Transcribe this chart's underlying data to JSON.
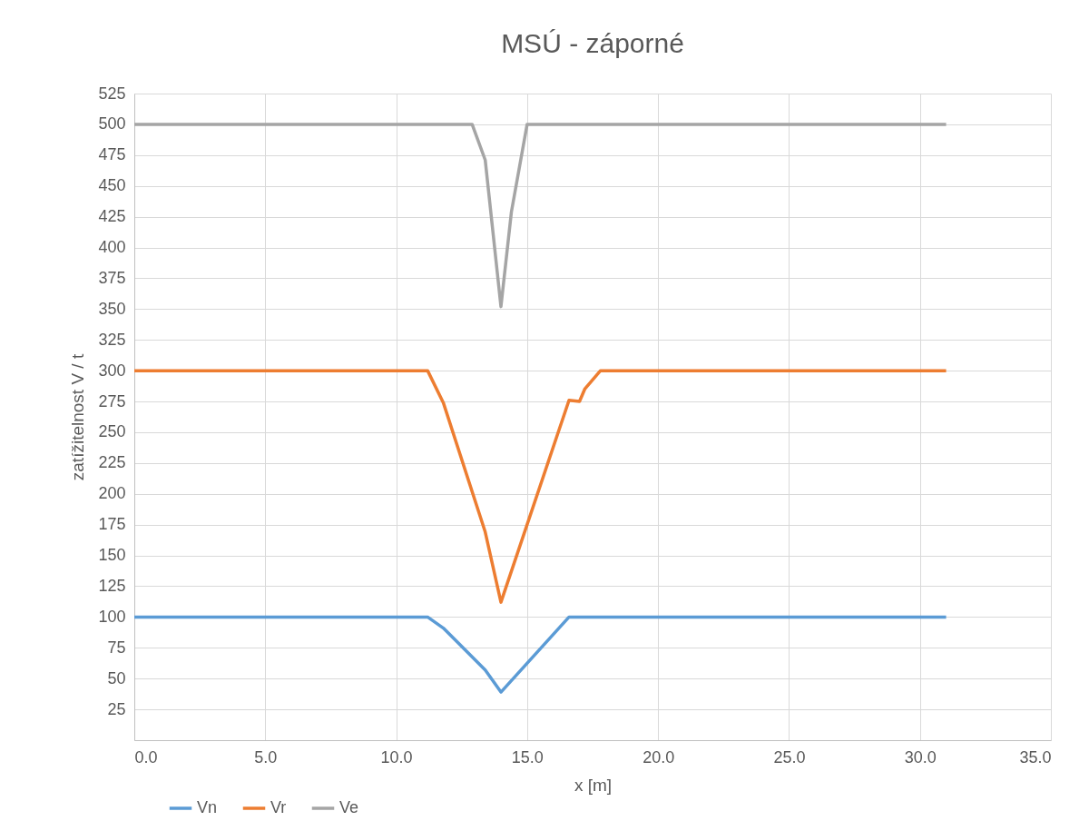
{
  "chart_data": {
    "type": "line",
    "title": "MSÚ - záporné",
    "xlabel": "x [m]",
    "ylabel": "zatížitelnost V / t",
    "series": [
      {
        "name": "Vn",
        "color": "#5b9bd5",
        "x": [
          0,
          11.2,
          11.8,
          13.4,
          14.0,
          16.6,
          31.0
        ],
        "values": [
          100,
          100,
          91,
          57,
          39,
          100,
          100
        ]
      },
      {
        "name": "Vr",
        "color": "#ed7d31",
        "x": [
          0,
          11.2,
          11.8,
          13.4,
          14.0,
          16.6,
          17.0,
          17.2,
          17.8,
          31.0
        ],
        "values": [
          300,
          300,
          274,
          169,
          112,
          276,
          275,
          285,
          300,
          300
        ]
      },
      {
        "name": "Ve",
        "color": "#a5a5a5",
        "x": [
          0,
          12.9,
          13.4,
          14.0,
          14.4,
          15.0,
          31.0
        ],
        "values": [
          500,
          500,
          471,
          352,
          429,
          500,
          500
        ]
      }
    ],
    "xlim": [
      0,
      35
    ],
    "xticks": [
      {
        "value": 0,
        "label": "0.0"
      },
      {
        "value": 5,
        "label": "5.0"
      },
      {
        "value": 10,
        "label": "10.0"
      },
      {
        "value": 15,
        "label": "15.0"
      },
      {
        "value": 20,
        "label": "20.0"
      },
      {
        "value": 25,
        "label": "25.0"
      },
      {
        "value": 30,
        "label": "30.0"
      },
      {
        "value": 35,
        "label": "35.0"
      }
    ],
    "ylim": [
      0,
      525
    ],
    "yticks": [
      25,
      50,
      75,
      100,
      125,
      150,
      175,
      200,
      225,
      250,
      275,
      300,
      325,
      350,
      375,
      400,
      425,
      450,
      475,
      500,
      525
    ],
    "grid": true,
    "legend": "bottom left",
    "marker": "none",
    "line_style": "solid"
  }
}
